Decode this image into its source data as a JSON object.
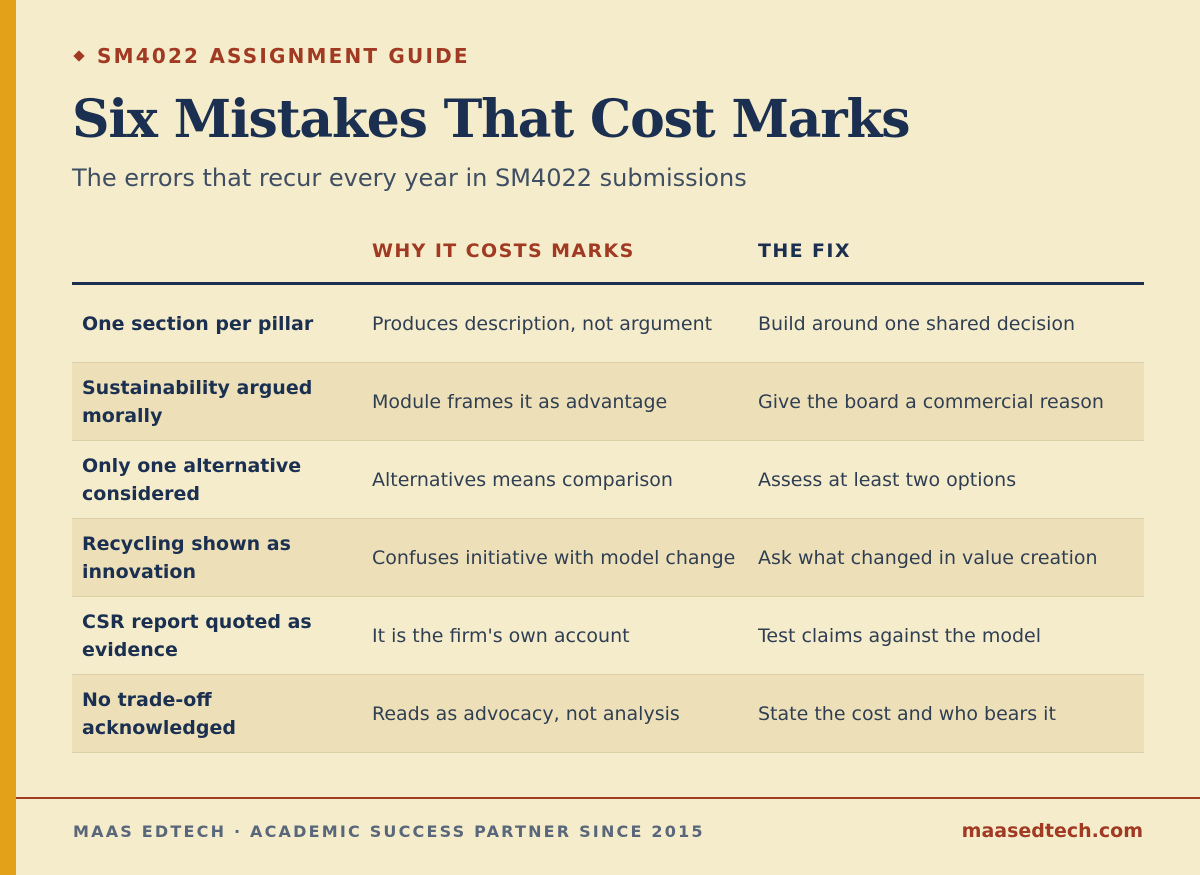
{
  "colors": {
    "background": "#F5ECCB",
    "accent_bar": "#E3A11A",
    "brand_red": "#A13A22",
    "navy": "#1B3050",
    "row_shade": "#EDE0B8"
  },
  "header": {
    "eyebrow_icon": "diamond-icon",
    "eyebrow": "SM4022 ASSIGNMENT GUIDE",
    "title": "Six Mistakes That Cost Marks",
    "subtitle": "The errors that recur every year in SM4022 submissions"
  },
  "table": {
    "headers": {
      "mistake": "",
      "why": "WHY IT COSTS MARKS",
      "fix": "THE FIX"
    },
    "rows": [
      {
        "mistake": "One section per pillar",
        "why": "Produces description, not argument",
        "fix": "Build around one shared decision"
      },
      {
        "mistake": "Sustainability argued morally",
        "why": "Module frames it as advantage",
        "fix": "Give the board a commercial reason"
      },
      {
        "mistake": "Only one alternative considered",
        "why": "Alternatives means comparison",
        "fix": "Assess at least two options"
      },
      {
        "mistake": "Recycling shown as innovation",
        "why": "Confuses initiative with model change",
        "fix": "Ask what changed in value creation"
      },
      {
        "mistake": "CSR report quoted as evidence",
        "why": "It is the firm's own account",
        "fix": "Test claims against the model"
      },
      {
        "mistake": "No trade-off acknowledged",
        "why": "Reads as advocacy, not analysis",
        "fix": "State the cost and who bears it"
      }
    ]
  },
  "footer": {
    "tagline": "MAAS EDTECH · ACADEMIC SUCCESS PARTNER SINCE 2015",
    "website": "maasedtech.com"
  }
}
